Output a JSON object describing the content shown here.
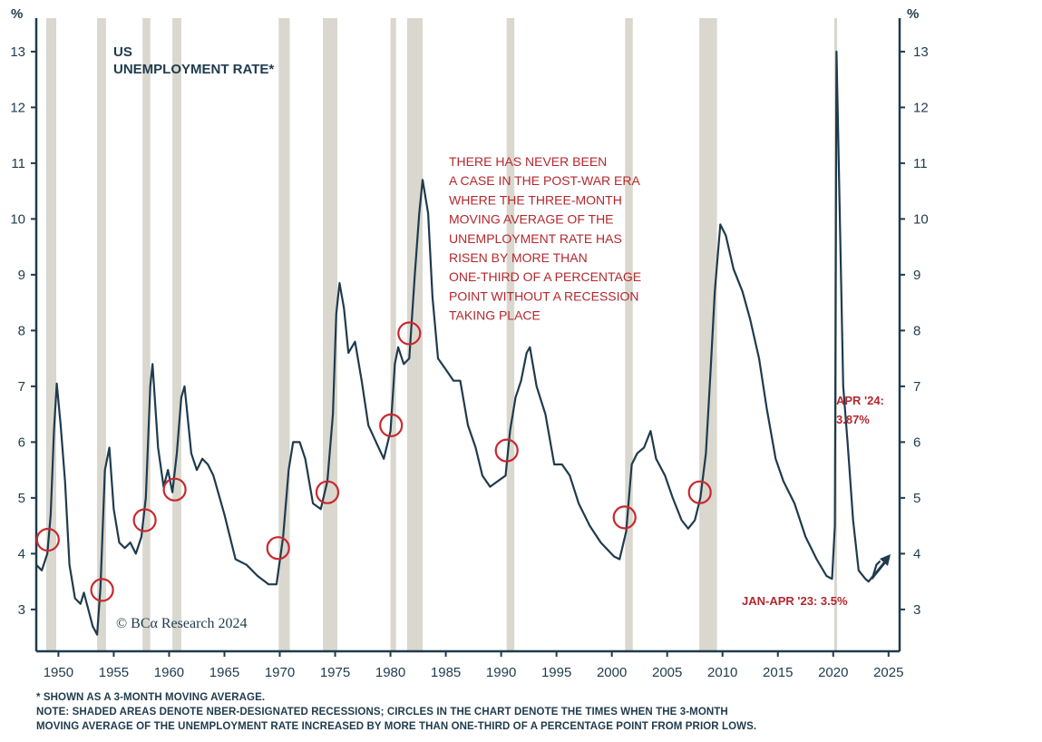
{
  "chart_data": {
    "type": "line",
    "title": "US UNEMPLOYMENT RATE",
    "title_lines": [
      "US",
      "UNEMPLOYMENT RATE*"
    ],
    "ylabel": "%",
    "ylim": [
      2.25,
      13.6
    ],
    "xlim": [
      1948.0,
      2026.0
    ],
    "yticks": [
      3,
      4,
      5,
      6,
      7,
      8,
      9,
      10,
      11,
      12,
      13
    ],
    "xticks": [
      1950,
      1955,
      1960,
      1965,
      1970,
      1975,
      1980,
      1985,
      1990,
      1995,
      2000,
      2005,
      2010,
      2015,
      2020,
      2025
    ],
    "grid": false,
    "colors": {
      "line": "#1f3b4d",
      "recession": "#d9d7ce",
      "circle": "#c9282d",
      "annotation": "#b3282d",
      "axis": "#1f3b4d"
    },
    "recessions": [
      [
        1948.9,
        1949.8
      ],
      [
        1953.5,
        1954.3
      ],
      [
        1957.6,
        1958.3
      ],
      [
        1960.3,
        1961.1
      ],
      [
        1969.9,
        1970.9
      ],
      [
        1973.9,
        1975.2
      ],
      [
        1980.0,
        1980.5
      ],
      [
        1981.5,
        1982.9
      ],
      [
        1990.5,
        1991.2
      ],
      [
        2001.2,
        2001.9
      ],
      [
        2007.9,
        2009.5
      ],
      [
        2020.1,
        2020.3
      ]
    ],
    "series": [
      {
        "values": [
          [
            1948.0,
            3.8
          ],
          [
            1948.5,
            3.7
          ],
          [
            1949.0,
            4.0
          ],
          [
            1949.3,
            4.7
          ],
          [
            1949.6,
            6.2
          ],
          [
            1949.85,
            7.05
          ],
          [
            1950.2,
            6.3
          ],
          [
            1950.6,
            5.3
          ],
          [
            1951.0,
            3.8
          ],
          [
            1951.5,
            3.2
          ],
          [
            1952.0,
            3.1
          ],
          [
            1952.3,
            3.3
          ],
          [
            1952.7,
            3.0
          ],
          [
            1953.1,
            2.7
          ],
          [
            1953.5,
            2.55
          ],
          [
            1953.8,
            3.4
          ],
          [
            1954.2,
            5.5
          ],
          [
            1954.6,
            5.9
          ],
          [
            1955.0,
            4.8
          ],
          [
            1955.5,
            4.2
          ],
          [
            1956.0,
            4.1
          ],
          [
            1956.5,
            4.2
          ],
          [
            1957.0,
            4.0
          ],
          [
            1957.5,
            4.3
          ],
          [
            1957.9,
            5.0
          ],
          [
            1958.3,
            7.0
          ],
          [
            1958.5,
            7.4
          ],
          [
            1959.0,
            5.9
          ],
          [
            1959.5,
            5.2
          ],
          [
            1959.9,
            5.5
          ],
          [
            1960.3,
            5.1
          ],
          [
            1960.7,
            5.8
          ],
          [
            1961.1,
            6.8
          ],
          [
            1961.4,
            7.0
          ],
          [
            1962.0,
            5.8
          ],
          [
            1962.5,
            5.5
          ],
          [
            1963.0,
            5.7
          ],
          [
            1963.5,
            5.6
          ],
          [
            1964.0,
            5.4
          ],
          [
            1965.0,
            4.7
          ],
          [
            1966.0,
            3.9
          ],
          [
            1967.0,
            3.8
          ],
          [
            1968.0,
            3.6
          ],
          [
            1969.0,
            3.45
          ],
          [
            1969.7,
            3.45
          ],
          [
            1970.3,
            4.3
          ],
          [
            1970.8,
            5.5
          ],
          [
            1971.2,
            6.0
          ],
          [
            1971.8,
            6.0
          ],
          [
            1972.3,
            5.7
          ],
          [
            1973.0,
            4.9
          ],
          [
            1973.7,
            4.8
          ],
          [
            1974.3,
            5.3
          ],
          [
            1974.8,
            6.5
          ],
          [
            1975.1,
            8.3
          ],
          [
            1975.4,
            8.85
          ],
          [
            1975.8,
            8.4
          ],
          [
            1976.2,
            7.6
          ],
          [
            1976.8,
            7.8
          ],
          [
            1977.4,
            7.1
          ],
          [
            1978.0,
            6.3
          ],
          [
            1978.7,
            6.0
          ],
          [
            1979.4,
            5.7
          ],
          [
            1980.0,
            6.2
          ],
          [
            1980.4,
            7.4
          ],
          [
            1980.7,
            7.7
          ],
          [
            1981.2,
            7.4
          ],
          [
            1981.7,
            7.5
          ],
          [
            1982.2,
            9.0
          ],
          [
            1982.6,
            10.1
          ],
          [
            1982.9,
            10.7
          ],
          [
            1983.4,
            10.1
          ],
          [
            1983.8,
            8.6
          ],
          [
            1984.3,
            7.5
          ],
          [
            1985.0,
            7.3
          ],
          [
            1985.7,
            7.1
          ],
          [
            1986.3,
            7.1
          ],
          [
            1987.0,
            6.3
          ],
          [
            1987.7,
            5.9
          ],
          [
            1988.3,
            5.4
          ],
          [
            1989.0,
            5.2
          ],
          [
            1989.7,
            5.3
          ],
          [
            1990.4,
            5.4
          ],
          [
            1990.8,
            6.2
          ],
          [
            1991.3,
            6.8
          ],
          [
            1991.8,
            7.1
          ],
          [
            1992.3,
            7.6
          ],
          [
            1992.6,
            7.7
          ],
          [
            1993.2,
            7.0
          ],
          [
            1994.0,
            6.5
          ],
          [
            1994.8,
            5.6
          ],
          [
            1995.5,
            5.6
          ],
          [
            1996.2,
            5.4
          ],
          [
            1997.0,
            4.9
          ],
          [
            1998.0,
            4.5
          ],
          [
            1999.0,
            4.2
          ],
          [
            2000.2,
            3.95
          ],
          [
            2000.7,
            3.9
          ],
          [
            2001.3,
            4.4
          ],
          [
            2001.8,
            5.6
          ],
          [
            2002.3,
            5.8
          ],
          [
            2002.9,
            5.9
          ],
          [
            2003.5,
            6.2
          ],
          [
            2004.0,
            5.7
          ],
          [
            2004.8,
            5.4
          ],
          [
            2005.5,
            5.0
          ],
          [
            2006.3,
            4.6
          ],
          [
            2006.9,
            4.45
          ],
          [
            2007.5,
            4.6
          ],
          [
            2008.0,
            5.0
          ],
          [
            2008.5,
            5.8
          ],
          [
            2008.9,
            7.2
          ],
          [
            2009.3,
            8.7
          ],
          [
            2009.8,
            9.9
          ],
          [
            2010.3,
            9.7
          ],
          [
            2011.0,
            9.1
          ],
          [
            2011.8,
            8.7
          ],
          [
            2012.5,
            8.2
          ],
          [
            2013.3,
            7.5
          ],
          [
            2014.0,
            6.6
          ],
          [
            2014.8,
            5.7
          ],
          [
            2015.5,
            5.3
          ],
          [
            2016.5,
            4.9
          ],
          [
            2017.5,
            4.3
          ],
          [
            2018.5,
            3.9
          ],
          [
            2019.4,
            3.6
          ],
          [
            2019.9,
            3.55
          ],
          [
            2020.15,
            4.5
          ],
          [
            2020.3,
            13.0
          ],
          [
            2020.55,
            10.5
          ],
          [
            2020.9,
            7.0
          ],
          [
            2021.3,
            6.0
          ],
          [
            2021.8,
            4.6
          ],
          [
            2022.3,
            3.7
          ],
          [
            2022.9,
            3.55
          ],
          [
            2023.2,
            3.5
          ],
          [
            2023.6,
            3.6
          ],
          [
            2023.9,
            3.8
          ],
          [
            2024.25,
            3.87
          ]
        ]
      }
    ],
    "circles": [
      [
        1949.05,
        4.25
      ],
      [
        1953.95,
        3.35
      ],
      [
        1957.8,
        4.6
      ],
      [
        1960.5,
        5.15
      ],
      [
        1969.85,
        4.1
      ],
      [
        1974.3,
        5.1
      ],
      [
        1980.05,
        6.3
      ],
      [
        1981.7,
        7.95
      ],
      [
        1990.5,
        5.85
      ],
      [
        2001.15,
        4.65
      ],
      [
        2007.95,
        5.1
      ]
    ],
    "annotations": {
      "main_note": [
        "THERE HAS NEVER BEEN",
        "A CASE IN THE POST-WAR ERA",
        "WHERE THE THREE-MONTH",
        "MOVING AVERAGE OF THE",
        "UNEMPLOYMENT RATE HAS",
        "RISEN BY MORE THAN",
        "ONE-THIRD OF A PERCENTAGE",
        "POINT WITHOUT A RECESSION",
        "TAKING PLACE"
      ],
      "apr24": [
        "APR '24:",
        "3.87%"
      ],
      "jan_apr23": "JAN-APR '23: 3.5%"
    },
    "credit": "© BCα Research 2024"
  },
  "footnotes": [
    "* SHOWN AS A 3-MONTH MOVING AVERAGE.",
    "NOTE: SHADED AREAS DENOTE NBER-DESIGNATED RECESSIONS; CIRCLES IN THE CHART DENOTE THE TIMES WHEN THE 3-MONTH",
    "MOVING AVERAGE OF THE UNEMPLOYMENT RATE INCREASED BY MORE THAN ONE-THIRD OF A PERCENTAGE POINT FROM PRIOR LOWS."
  ]
}
